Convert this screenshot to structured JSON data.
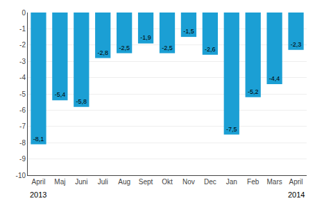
{
  "chart_data": {
    "type": "bar",
    "categories": [
      "April",
      "Maj",
      "Juni",
      "Juli",
      "Aug",
      "Sept",
      "Okt",
      "Nov",
      "Dec",
      "Jan",
      "Feb",
      "Mars",
      "April"
    ],
    "values": [
      -8.1,
      -5.4,
      -5.8,
      -2.8,
      -2.5,
      -1.9,
      -2.5,
      -1.5,
      -2.6,
      -7.5,
      -5.2,
      -4.4,
      -2.3
    ],
    "value_labels": [
      "-8,1",
      "-5,4",
      "-5,8",
      "-2,8",
      "-2,5",
      "-1,9",
      "-2,5",
      "-1,5",
      "-2,6",
      "-7,5",
      "-5,2",
      "-4,4",
      "-2,3"
    ],
    "data_labels": true,
    "color": "#1b9fd4",
    "ylim": [
      -10,
      0
    ],
    "yticks": [
      0,
      -1,
      -2,
      -3,
      -4,
      -5,
      -6,
      -7,
      -8,
      -9,
      -10
    ],
    "grid": true,
    "annotations": [
      {
        "text": "2013",
        "x": 0
      },
      {
        "text": "2014",
        "x": 12
      }
    ]
  }
}
